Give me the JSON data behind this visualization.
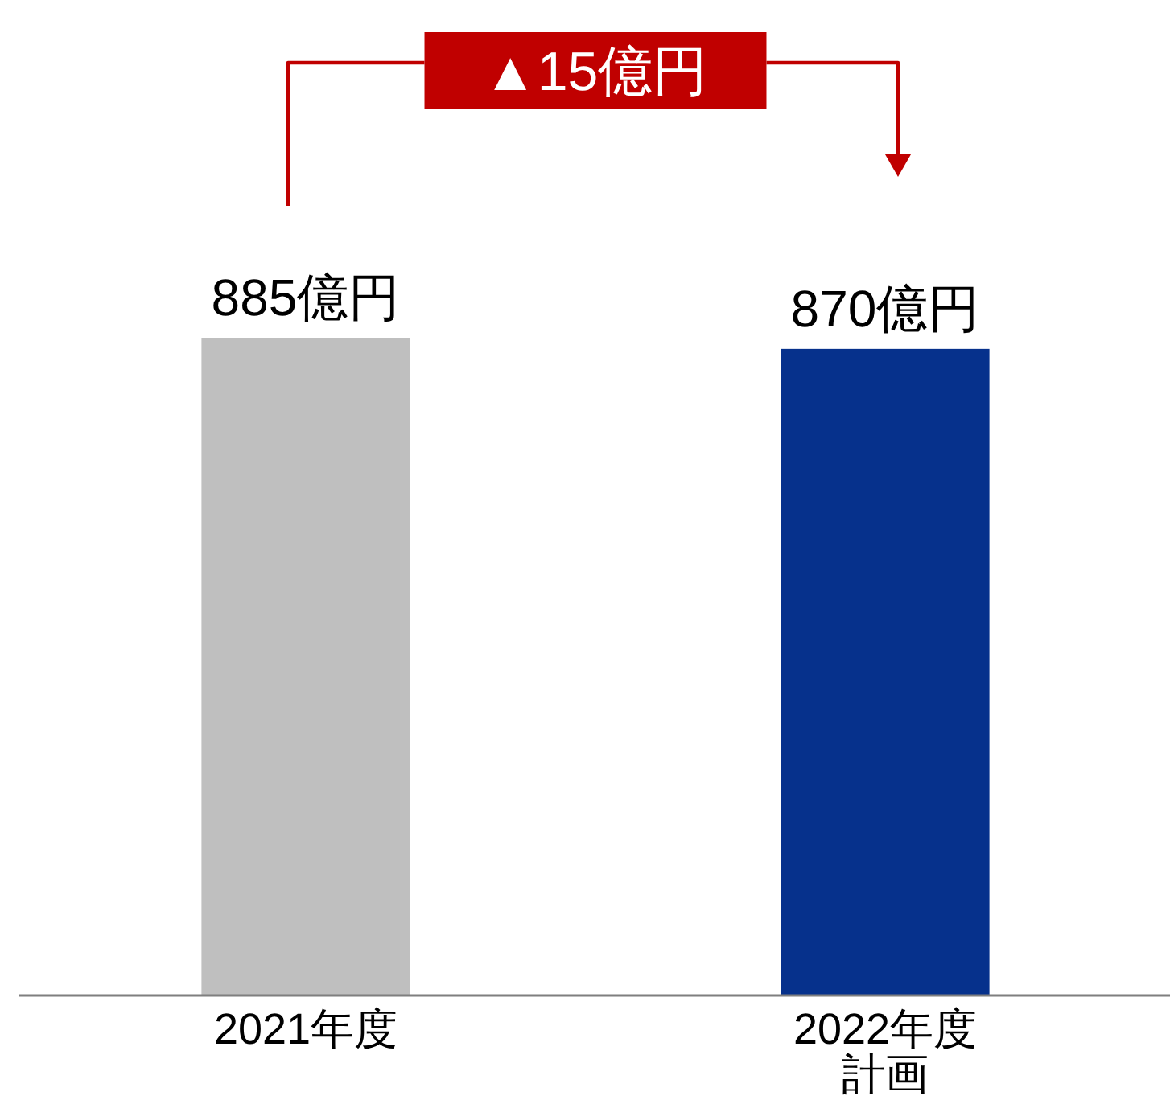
{
  "chart_data": {
    "type": "bar",
    "categories": [
      "2021年度",
      "2022年度計画"
    ],
    "values": [
      885,
      870
    ],
    "colors": [
      "#bfbfbf",
      "#06318c"
    ],
    "value_labels": [
      "885億円",
      "870億円"
    ],
    "annotations": [
      "▲15億円"
    ]
  }
}
